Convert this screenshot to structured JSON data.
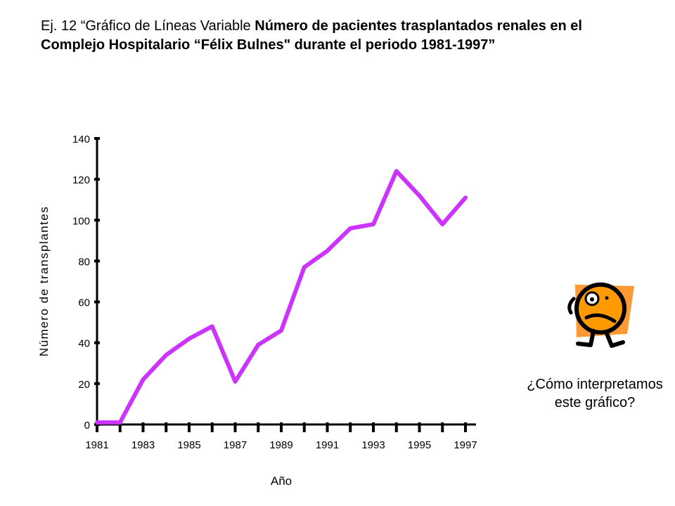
{
  "title": {
    "prefix": "Ej. 12 “Gráfico de Líneas Variable ",
    "bold": "Número de pacientes trasplantados renales en el Complejo Hospitalario “Félix Bulnes\" durante el periodo 1981-1997”"
  },
  "question": "¿Cómo interpretamos este gráfico?",
  "colors": {
    "line": "#cc33ff",
    "axis": "#000000",
    "mascot_bg": "#ff9933",
    "mascot_face": "#ff9900"
  },
  "icons": [
    "confused-face-icon"
  ],
  "chart_data": {
    "type": "line",
    "xlabel": "Año",
    "ylabel": "Número de transplantes",
    "x": [
      1981,
      1982,
      1983,
      1984,
      1985,
      1986,
      1987,
      1988,
      1989,
      1990,
      1991,
      1992,
      1993,
      1994,
      1995,
      1996,
      1997
    ],
    "xticklabels": [
      "1981",
      "1983",
      "1985",
      "1987",
      "1989",
      "1991",
      "1993",
      "1995",
      "1997"
    ],
    "yticklabels": [
      "0",
      "20",
      "40",
      "60",
      "80",
      "100",
      "120",
      "140"
    ],
    "xlim": [
      1981,
      1997
    ],
    "ylim": [
      0,
      140
    ],
    "series": [
      {
        "values": [
          1,
          1,
          22,
          34,
          42,
          48,
          21,
          39,
          46,
          77,
          85,
          96,
          98,
          124,
          112,
          98,
          111
        ]
      }
    ],
    "grid": false,
    "legend": "none"
  }
}
